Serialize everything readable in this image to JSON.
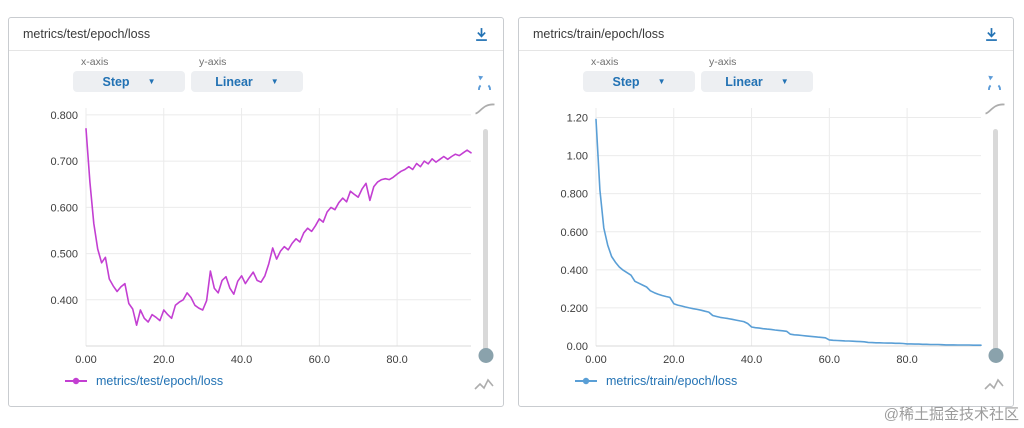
{
  "page": {
    "watermark": "@稀土掘金技术社区"
  },
  "colors": {
    "accent": "#2272b4",
    "reset_icon": "#5b9bd8",
    "download_icon": "#2272b4",
    "slider_handle": "#8aa2ac",
    "watermark": "#9c9c9c",
    "grid": "#ebebeb",
    "axis": "#d8d8d8",
    "tick_text": "#3d3d3d"
  },
  "panels": [
    {
      "title": "metrics/test/epoch/loss",
      "controls": {
        "x_axis_label": "x-axis",
        "x_axis_value": "Step",
        "y_axis_label": "y-axis",
        "y_axis_value": "Linear"
      },
      "legend": {
        "label": "metrics/test/epoch/loss"
      }
    },
    {
      "title": "metrics/train/epoch/loss",
      "controls": {
        "x_axis_label": "x-axis",
        "x_axis_value": "Step",
        "y_axis_label": "y-axis",
        "y_axis_value": "Linear"
      },
      "legend": {
        "label": "metrics/train/epoch/loss"
      }
    }
  ],
  "chart_data": [
    {
      "type": "line",
      "title": "metrics/test/epoch/loss",
      "xlabel": "Step",
      "ylabel": "",
      "xlim": [
        0,
        99
      ],
      "ylim": [
        0.3,
        0.815
      ],
      "grid": true,
      "legend_position": "bottom",
      "x_ticks": {
        "values": [
          0,
          20,
          40,
          60,
          80
        ],
        "labels": [
          "0.00",
          "20.0",
          "40.0",
          "60.0",
          "80.0"
        ]
      },
      "y_ticks": {
        "values": [
          0.8,
          0.7,
          0.6,
          0.5,
          0.4
        ],
        "labels": [
          "0.800",
          "0.700",
          "0.600",
          "0.500",
          "0.400"
        ]
      },
      "series": [
        {
          "name": "metrics/test/epoch/loss",
          "color": "#c33fd2",
          "x": [
            0,
            1,
            2,
            3,
            4,
            5,
            6,
            7,
            8,
            9,
            10,
            11,
            12,
            13,
            14,
            15,
            16,
            17,
            18,
            19,
            20,
            21,
            22,
            23,
            24,
            25,
            26,
            27,
            28,
            29,
            30,
            31,
            32,
            33,
            34,
            35,
            36,
            37,
            38,
            39,
            40,
            41,
            42,
            43,
            44,
            45,
            46,
            47,
            48,
            49,
            50,
            51,
            52,
            53,
            54,
            55,
            56,
            57,
            58,
            59,
            60,
            61,
            62,
            63,
            64,
            65,
            66,
            67,
            68,
            69,
            70,
            71,
            72,
            73,
            74,
            75,
            76,
            77,
            78,
            79,
            80,
            81,
            82,
            83,
            84,
            85,
            86,
            87,
            88,
            89,
            90,
            91,
            92,
            93,
            94,
            95,
            96,
            97,
            98,
            99
          ],
          "values": [
            0.77,
            0.655,
            0.565,
            0.51,
            0.48,
            0.492,
            0.445,
            0.43,
            0.418,
            0.428,
            0.435,
            0.392,
            0.38,
            0.345,
            0.378,
            0.36,
            0.352,
            0.368,
            0.362,
            0.355,
            0.378,
            0.368,
            0.36,
            0.388,
            0.395,
            0.4,
            0.415,
            0.405,
            0.388,
            0.382,
            0.378,
            0.398,
            0.462,
            0.425,
            0.415,
            0.442,
            0.45,
            0.425,
            0.412,
            0.44,
            0.452,
            0.435,
            0.448,
            0.46,
            0.442,
            0.438,
            0.452,
            0.478,
            0.512,
            0.488,
            0.505,
            0.515,
            0.508,
            0.522,
            0.532,
            0.525,
            0.545,
            0.555,
            0.548,
            0.56,
            0.575,
            0.568,
            0.59,
            0.6,
            0.595,
            0.61,
            0.62,
            0.612,
            0.635,
            0.628,
            0.622,
            0.64,
            0.652,
            0.615,
            0.645,
            0.655,
            0.66,
            0.662,
            0.66,
            0.665,
            0.672,
            0.678,
            0.682,
            0.688,
            0.682,
            0.695,
            0.688,
            0.7,
            0.694,
            0.705,
            0.698,
            0.704,
            0.71,
            0.704,
            0.71,
            0.715,
            0.712,
            0.718,
            0.724,
            0.718
          ]
        }
      ]
    },
    {
      "type": "line",
      "title": "metrics/train/epoch/loss",
      "xlabel": "Step",
      "ylabel": "",
      "xlim": [
        0,
        99
      ],
      "ylim": [
        0,
        1.25
      ],
      "grid": true,
      "legend_position": "bottom",
      "x_ticks": {
        "values": [
          0,
          20,
          40,
          60,
          80
        ],
        "labels": [
          "0.00",
          "20.0",
          "40.0",
          "60.0",
          "80.0"
        ]
      },
      "y_ticks": {
        "values": [
          1.2,
          1.0,
          0.8,
          0.6,
          0.4,
          0.2,
          0.0
        ],
        "labels": [
          "1.20",
          "1.00",
          "0.800",
          "0.600",
          "0.400",
          "0.200",
          "0.00"
        ]
      },
      "series": [
        {
          "name": "metrics/train/epoch/loss",
          "color": "#5a9fd6",
          "x": [
            0,
            1,
            2,
            3,
            4,
            5,
            6,
            7,
            8,
            9,
            10,
            11,
            12,
            13,
            14,
            15,
            16,
            17,
            18,
            19,
            20,
            21,
            22,
            23,
            24,
            25,
            26,
            27,
            28,
            29,
            30,
            31,
            32,
            33,
            34,
            35,
            36,
            37,
            38,
            39,
            40,
            41,
            42,
            43,
            44,
            45,
            46,
            47,
            48,
            49,
            50,
            51,
            52,
            53,
            54,
            55,
            56,
            57,
            58,
            59,
            60,
            61,
            62,
            63,
            64,
            65,
            66,
            67,
            68,
            69,
            70,
            71,
            72,
            73,
            74,
            75,
            76,
            77,
            78,
            79,
            80,
            81,
            82,
            83,
            84,
            85,
            86,
            87,
            88,
            89,
            90,
            91,
            92,
            93,
            94,
            95,
            96,
            97,
            98,
            99
          ],
          "values": [
            1.19,
            0.82,
            0.62,
            0.53,
            0.47,
            0.44,
            0.415,
            0.398,
            0.385,
            0.372,
            0.34,
            0.33,
            0.32,
            0.31,
            0.29,
            0.28,
            0.272,
            0.265,
            0.26,
            0.255,
            0.222,
            0.215,
            0.21,
            0.205,
            0.2,
            0.196,
            0.192,
            0.188,
            0.183,
            0.178,
            0.16,
            0.155,
            0.15,
            0.147,
            0.144,
            0.14,
            0.136,
            0.132,
            0.128,
            0.118,
            0.1,
            0.096,
            0.094,
            0.091,
            0.089,
            0.087,
            0.084,
            0.082,
            0.08,
            0.077,
            0.062,
            0.059,
            0.057,
            0.055,
            0.053,
            0.051,
            0.049,
            0.047,
            0.045,
            0.043,
            0.032,
            0.03,
            0.029,
            0.028,
            0.027,
            0.026,
            0.025,
            0.024,
            0.023,
            0.022,
            0.019,
            0.018,
            0.017,
            0.017,
            0.016,
            0.015,
            0.015,
            0.014,
            0.014,
            0.013,
            0.011,
            0.011,
            0.01,
            0.01,
            0.009,
            0.009,
            0.008,
            0.008,
            0.008,
            0.007,
            0.006,
            0.006,
            0.006,
            0.005,
            0.005,
            0.005,
            0.005,
            0.004,
            0.004,
            0.004
          ]
        }
      ]
    }
  ]
}
